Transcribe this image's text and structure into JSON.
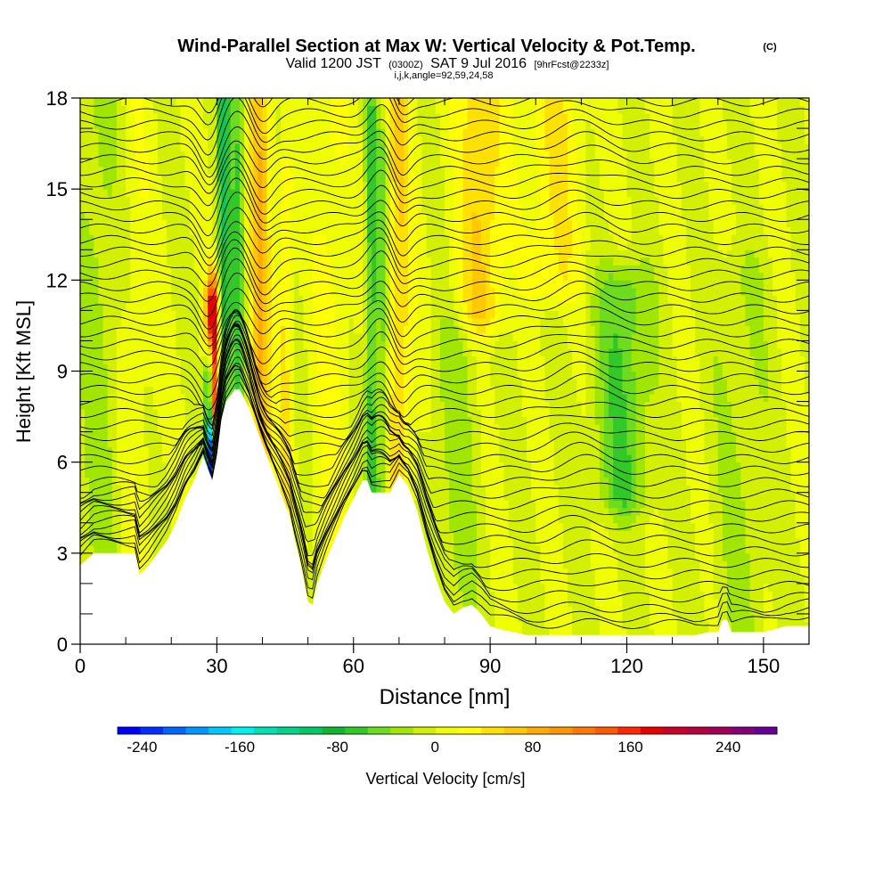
{
  "header": {
    "title": "Wind-Parallel Section at Max W: Vertical Velocity & Pot.Temp.",
    "copyright": "(C)",
    "valid_prefix": "Valid 1200 JST",
    "valid_utc": "(0300Z)",
    "valid_date": "SAT 9 Jul 2016",
    "forecast_info": "[9hrFcst@2233z]",
    "indices": "i,j,k,angle=92,59,24,58"
  },
  "chart_data": {
    "type": "heatmap",
    "xlabel": "Distance [nm]",
    "ylabel": "Height [Kft MSL]",
    "xlim": [
      0,
      160
    ],
    "ylim": [
      0,
      18
    ],
    "x_ticks": [
      0,
      30,
      60,
      90,
      120,
      150
    ],
    "y_ticks": [
      0,
      3,
      6,
      9,
      12,
      15,
      18
    ],
    "colorbar": {
      "label": "Vertical Velocity [cm/s]",
      "range": [
        -260,
        280
      ],
      "tick_values": [
        -240,
        -160,
        -80,
        0,
        80,
        160,
        240
      ],
      "tick_labels": [
        "-240",
        "-160",
        "-80",
        "0",
        "80",
        "160",
        "240"
      ],
      "colors": [
        "#0000ff",
        "#0030ff",
        "#0064ff",
        "#0096ff",
        "#00c8ff",
        "#00f0f0",
        "#00e0b4",
        "#00d28c",
        "#00c864",
        "#14b432",
        "#32c828",
        "#6edc1e",
        "#a0e600",
        "#d2f000",
        "#f0ff00",
        "#ffff00",
        "#ffe100",
        "#ffc800",
        "#ffaa00",
        "#ff9600",
        "#ff7800",
        "#ff5a00",
        "#ff2800",
        "#e60000",
        "#c80028",
        "#b4003c",
        "#a0005a",
        "#820078",
        "#640096"
      ]
    },
    "terrain_height_kft": {
      "x": [
        0,
        3,
        6,
        9,
        12,
        13,
        15,
        17,
        19,
        21,
        23,
        25,
        27,
        28,
        29,
        30,
        31,
        32,
        34,
        35,
        37,
        38,
        40,
        42,
        44,
        46,
        47,
        48,
        49,
        50,
        51,
        52,
        54,
        56,
        58,
        60,
        62,
        63,
        64,
        66,
        68,
        70,
        72,
        74,
        76,
        78,
        80,
        82,
        84,
        86,
        88,
        90,
        92,
        95,
        98,
        100,
        105,
        110,
        115,
        120,
        125,
        130,
        135,
        138,
        140,
        141,
        142,
        143,
        144,
        145,
        150,
        155,
        160
      ],
      "y": [
        2.6,
        3.0,
        3.0,
        3.0,
        3.0,
        2.3,
        2.6,
        3.0,
        3.4,
        4.0,
        4.8,
        5.4,
        6.2,
        5.8,
        5.4,
        6.2,
        7.4,
        8.0,
        8.4,
        8.4,
        7.8,
        7.4,
        6.6,
        5.8,
        5.0,
        4.2,
        3.5,
        2.9,
        2.2,
        1.4,
        1.3,
        2.0,
        2.8,
        3.5,
        4.2,
        4.8,
        5.4,
        5.4,
        5.0,
        5.0,
        5.0,
        5.6,
        5.2,
        4.4,
        3.2,
        2.2,
        1.4,
        1.0,
        1.2,
        1.3,
        1.0,
        0.6,
        0.5,
        0.4,
        0.3,
        0.3,
        0.3,
        0.3,
        0.3,
        0.3,
        0.3,
        0.3,
        0.3,
        0.4,
        0.4,
        0.8,
        0.8,
        0.4,
        0.4,
        0.4,
        0.4,
        0.6,
        0.6
      ]
    },
    "w_bands": [
      {
        "x": 29,
        "width": 1.4,
        "peak": 210,
        "z_low": 8.0,
        "z_high": 11.0
      },
      {
        "x": 28.3,
        "width": 0.9,
        "peak": -230,
        "z_low": 5.5,
        "z_high": 8.8
      },
      {
        "x": 31.5,
        "width": 1.3,
        "peak": -85,
        "z_low": 7.0,
        "z_high": 18.0
      },
      {
        "x": 34.5,
        "width": 1.6,
        "peak": -60,
        "z_low": 7.5,
        "z_high": 18.0
      },
      {
        "x": 39.5,
        "width": 2.4,
        "peak": 75,
        "z_low": 6.0,
        "z_high": 18.0
      },
      {
        "x": 45,
        "width": 1.6,
        "peak": 45,
        "z_low": 5.0,
        "z_high": 15.0
      },
      {
        "x": 64,
        "width": 1.4,
        "peak": -70,
        "z_low": 5.0,
        "z_high": 17.0
      },
      {
        "x": 66.5,
        "width": 1.2,
        "peak": -50,
        "z_low": 5.0,
        "z_high": 16.0
      },
      {
        "x": 70,
        "width": 3.0,
        "peak": 55,
        "z_low": 5.0,
        "z_high": 18.0
      },
      {
        "x": 88,
        "width": 5.0,
        "peak": 60,
        "z_low": 11.0,
        "z_high": 18.0
      },
      {
        "x": 104,
        "width": 6.0,
        "peak": 40,
        "z_low": 12.0,
        "z_high": 18.0
      },
      {
        "x": 119,
        "width": 6.0,
        "peak": -55,
        "z_low": 5.0,
        "z_high": 11.5
      },
      {
        "x": 4,
        "width": 5.0,
        "peak": -25,
        "z_low": 3.0,
        "z_high": 18.0
      },
      {
        "x": 12,
        "width": 4.0,
        "peak": 15,
        "z_low": 3.0,
        "z_high": 18.0
      },
      {
        "x": 55,
        "width": 4.0,
        "peak": 25,
        "z_low": 3.0,
        "z_high": 18.0
      },
      {
        "x": 82,
        "width": 5.0,
        "peak": -25,
        "z_low": 1.0,
        "z_high": 10.0
      },
      {
        "x": 145,
        "width": 6.0,
        "peak": -20,
        "z_low": 0.5,
        "z_high": 12.0
      }
    ],
    "isentropes": {
      "count": 48,
      "base_kft": 0.4,
      "spacing_kft": 0.38,
      "waves": [
        {
          "x": 28.5,
          "width": 3.0,
          "amp_kft": -1.0
        },
        {
          "x": 34,
          "width": 4.0,
          "amp_kft": 0.8
        },
        {
          "x": 40,
          "width": 3.0,
          "amp_kft": -0.6
        },
        {
          "x": 66,
          "width": 3.5,
          "amp_kft": 0.7
        },
        {
          "x": 70.5,
          "width": 2.5,
          "amp_kft": -0.5
        },
        {
          "x": 110,
          "width": 7.0,
          "amp_kft": 0.4
        }
      ]
    }
  }
}
